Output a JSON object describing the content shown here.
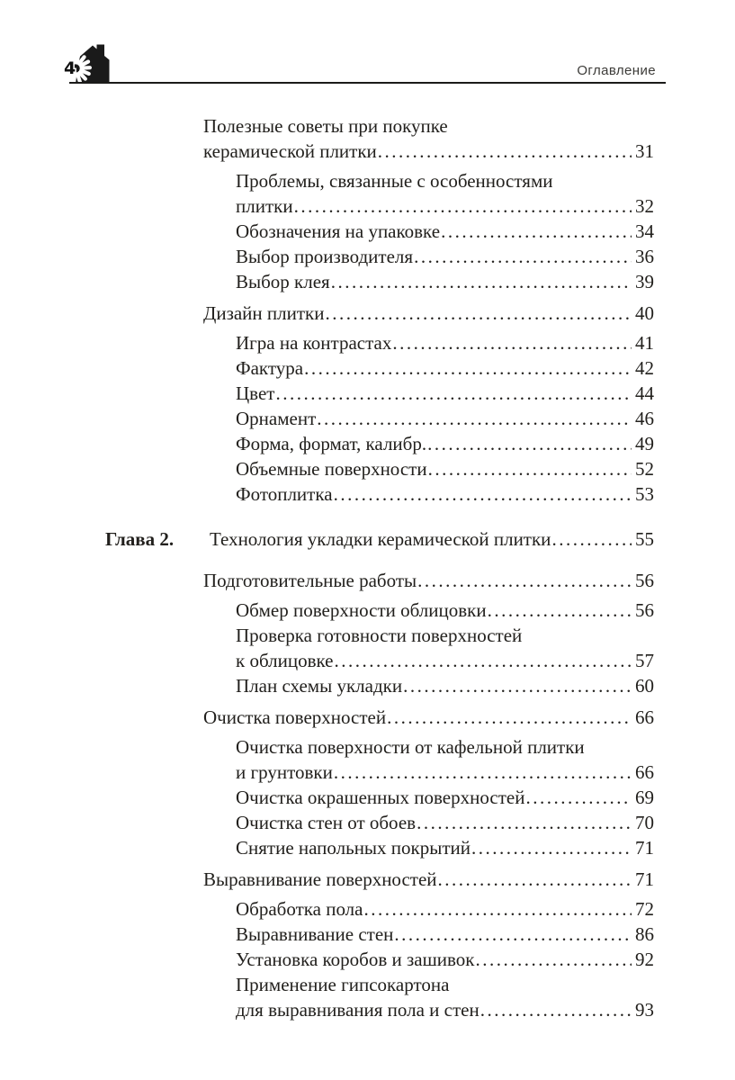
{
  "page": {
    "folio": "4",
    "running_head": "Оглавление"
  },
  "logo": {
    "description": "house-with-tile-fan-logo"
  },
  "toc": {
    "entries": [
      {
        "level": 1,
        "group_start": false,
        "lines": [
          "Полезные советы при покупке",
          "керамической плитки"
        ],
        "page": "31"
      },
      {
        "level": 2,
        "group_start": true,
        "lines": [
          "Проблемы, связанные с особенностями",
          "плитки"
        ],
        "page": "32"
      },
      {
        "level": 2,
        "group_start": false,
        "lines": [
          "Обозначения на упаковке"
        ],
        "page": "34"
      },
      {
        "level": 2,
        "group_start": false,
        "lines": [
          "Выбор производителя"
        ],
        "page": "36"
      },
      {
        "level": 2,
        "group_start": false,
        "lines": [
          "Выбор клея"
        ],
        "page": "39"
      },
      {
        "level": 1,
        "group_start": true,
        "lines": [
          "Дизайн плитки"
        ],
        "page": "40"
      },
      {
        "level": 2,
        "group_start": true,
        "lines": [
          "Игра на контрастах"
        ],
        "page": "41"
      },
      {
        "level": 2,
        "group_start": false,
        "lines": [
          "Фактура"
        ],
        "page": "42"
      },
      {
        "level": 2,
        "group_start": false,
        "lines": [
          "Цвет"
        ],
        "page": "44"
      },
      {
        "level": 2,
        "group_start": false,
        "lines": [
          "Орнамент"
        ],
        "page": "46"
      },
      {
        "level": 2,
        "group_start": false,
        "lines": [
          "Форма, формат, калибр."
        ],
        "page": "49"
      },
      {
        "level": 2,
        "group_start": false,
        "lines": [
          "Объемные поверхности"
        ],
        "page": "52"
      },
      {
        "level": 2,
        "group_start": false,
        "lines": [
          "Фотоплитка"
        ],
        "page": "53"
      },
      {
        "level": 0,
        "group_start": false,
        "label": "Глава 2.",
        "lines": [
          "Технология укладки керамической плитки"
        ],
        "page": "55"
      },
      {
        "level": 1,
        "group_start": false,
        "lines": [
          "Подготовительные работы"
        ],
        "page": "56"
      },
      {
        "level": 2,
        "group_start": true,
        "lines": [
          "Обмер поверхности облицовки"
        ],
        "page": "56"
      },
      {
        "level": 2,
        "group_start": false,
        "lines": [
          "Проверка готовности поверхностей",
          "к облицовке"
        ],
        "page": "57"
      },
      {
        "level": 2,
        "group_start": false,
        "lines": [
          "План схемы укладки"
        ],
        "page": "60"
      },
      {
        "level": 1,
        "group_start": true,
        "lines": [
          "Очистка поверхностей"
        ],
        "page": "66"
      },
      {
        "level": 2,
        "group_start": true,
        "lines": [
          "Очистка поверхности от кафельной плитки",
          "и грунтовки"
        ],
        "page": "66"
      },
      {
        "level": 2,
        "group_start": false,
        "lines": [
          "Очистка окрашенных поверхностей"
        ],
        "page": "69"
      },
      {
        "level": 2,
        "group_start": false,
        "lines": [
          "Очистка стен от обоев"
        ],
        "page": "70"
      },
      {
        "level": 2,
        "group_start": false,
        "lines": [
          "Снятие напольных покрытий"
        ],
        "page": "71"
      },
      {
        "level": 1,
        "group_start": true,
        "lines": [
          "Выравнивание поверхностей"
        ],
        "page": "71"
      },
      {
        "level": 2,
        "group_start": true,
        "lines": [
          "Обработка пола"
        ],
        "page": "72"
      },
      {
        "level": 2,
        "group_start": false,
        "lines": [
          "Выравнивание стен"
        ],
        "page": "86"
      },
      {
        "level": 2,
        "group_start": false,
        "lines": [
          "Установка коробов и зашивок"
        ],
        "page": "92"
      },
      {
        "level": 2,
        "group_start": false,
        "lines": [
          "Применение гипсокартона",
          "для выравнивания пола и стен"
        ],
        "page": "93"
      }
    ]
  },
  "colors": {
    "text": "#22201d",
    "running_head_text": "#3c3b38",
    "rule": "#1b1b19",
    "logo_fill": "#1a1a1a"
  }
}
